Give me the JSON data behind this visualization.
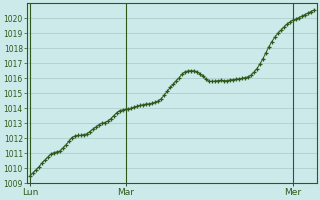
{
  "background_color": "#cceaea",
  "plot_bg_color": "#cceaea",
  "line_color": "#2d5a1b",
  "marker_color": "#2d5a1b",
  "grid_color": "#aac8c8",
  "axis_label_color": "#2d5a1b",
  "ylim": [
    1009,
    1021
  ],
  "yticks": [
    1009,
    1010,
    1011,
    1012,
    1013,
    1014,
    1015,
    1016,
    1017,
    1018,
    1019,
    1020
  ],
  "xtick_labels": [
    "Lun",
    "Mar",
    "Mer"
  ],
  "y_values": [
    1009.5,
    1009.7,
    1009.9,
    1010.1,
    1010.35,
    1010.55,
    1010.75,
    1010.95,
    1011.05,
    1011.1,
    1011.15,
    1011.35,
    1011.55,
    1011.8,
    1012.05,
    1012.15,
    1012.2,
    1012.2,
    1012.25,
    1012.3,
    1012.45,
    1012.6,
    1012.75,
    1012.9,
    1013.0,
    1013.05,
    1013.15,
    1013.3,
    1013.5,
    1013.7,
    1013.85,
    1013.9,
    1013.95,
    1013.95,
    1014.0,
    1014.1,
    1014.15,
    1014.2,
    1014.25,
    1014.3,
    1014.3,
    1014.35,
    1014.4,
    1014.5,
    1014.65,
    1014.9,
    1015.15,
    1015.4,
    1015.6,
    1015.85,
    1016.05,
    1016.3,
    1016.45,
    1016.5,
    1016.52,
    1016.5,
    1016.45,
    1016.3,
    1016.15,
    1015.95,
    1015.8,
    1015.8,
    1015.82,
    1015.85,
    1015.88,
    1015.85,
    1015.85,
    1015.9,
    1015.92,
    1015.95,
    1015.98,
    1016.0,
    1016.05,
    1016.1,
    1016.2,
    1016.4,
    1016.65,
    1016.95,
    1017.3,
    1017.7,
    1018.1,
    1018.45,
    1018.75,
    1019.0,
    1019.2,
    1019.4,
    1019.6,
    1019.75,
    1019.88,
    1019.95,
    1020.05,
    1020.15,
    1020.25,
    1020.35,
    1020.45,
    1020.55
  ],
  "n_points": 96,
  "lun_idx": 0,
  "mar_idx": 32,
  "mer_idx": 88
}
